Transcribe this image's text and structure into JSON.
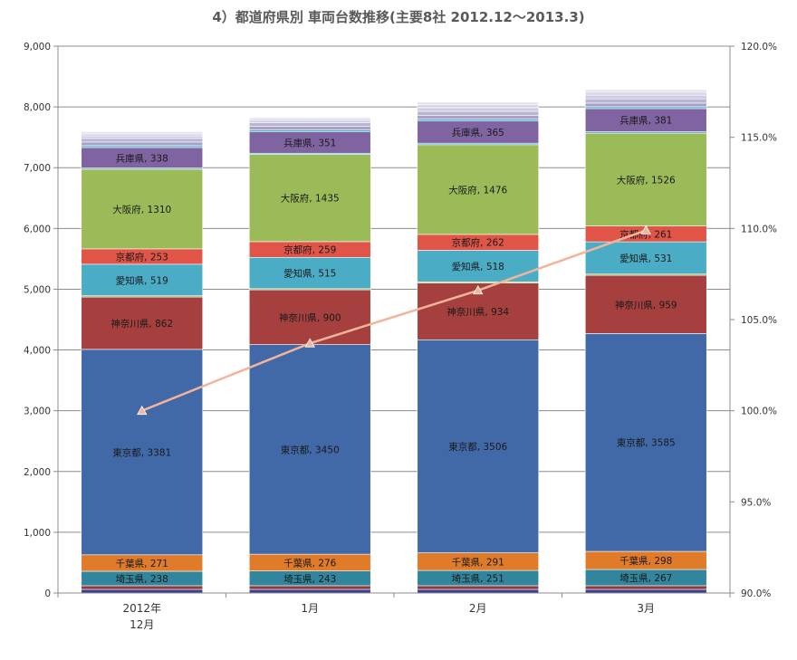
{
  "chart_data": {
    "type": "bar",
    "stacked": true,
    "title": "4）都道府県別 車両台数推移(主要8社 2012.12～2013.3)",
    "categories": [
      "2012年\n12月",
      "1月",
      "2月",
      "3月"
    ],
    "ylim": [
      0,
      9000
    ],
    "yticks": [
      0,
      1000,
      2000,
      3000,
      4000,
      5000,
      6000,
      7000,
      8000,
      9000
    ],
    "ytick_labels": [
      "0",
      "1,000",
      "2,000",
      "3,000",
      "4,000",
      "5,000",
      "6,000",
      "7,000",
      "8,000",
      "9,000"
    ],
    "y2lim": [
      90.0,
      120.0
    ],
    "y2ticks": [
      90,
      95,
      100,
      105,
      110,
      115,
      120
    ],
    "y2tick_labels": [
      "90.0%",
      "95.0%",
      "100.0%",
      "105.0%",
      "110.0%",
      "115.0%",
      "120.0%"
    ],
    "grid": "horizontal",
    "series": [
      {
        "name": "",
        "color": "#3A3F8F",
        "values": [
          60,
          60,
          60,
          60
        ],
        "labeled": false
      },
      {
        "name": "",
        "color": "#923A3A",
        "values": [
          60,
          60,
          60,
          60
        ],
        "labeled": false
      },
      {
        "name": "埼玉県",
        "color": "#31859C",
        "values": [
          238,
          243,
          251,
          267
        ],
        "labeled": true
      },
      {
        "name": "千葉県",
        "color": "#E07B2A",
        "values": [
          271,
          276,
          291,
          298
        ],
        "labeled": true
      },
      {
        "name": "東京都",
        "color": "#4169A8",
        "values": [
          3381,
          3450,
          3506,
          3585
        ],
        "labeled": true
      },
      {
        "name": "神奈川県",
        "color": "#A5403E",
        "values": [
          862,
          900,
          934,
          959
        ],
        "labeled": true
      },
      {
        "name": "",
        "color": "#9BBB59",
        "values": [
          20,
          20,
          20,
          20
        ],
        "labeled": false
      },
      {
        "name": "愛知県",
        "color": "#4BACC6",
        "values": [
          519,
          515,
          518,
          531
        ],
        "labeled": true
      },
      {
        "name": "京都府",
        "color": "#E05548",
        "values": [
          253,
          259,
          262,
          261
        ],
        "labeled": true
      },
      {
        "name": "大阪府",
        "color": "#9BBB59",
        "values": [
          1310,
          1435,
          1476,
          1526
        ],
        "labeled": true
      },
      {
        "name": "",
        "color": "#4BACC6",
        "values": [
          20,
          20,
          25,
          25
        ],
        "labeled": false
      },
      {
        "name": "兵庫県",
        "color": "#8064A2",
        "values": [
          338,
          351,
          365,
          381
        ],
        "labeled": true
      },
      {
        "name": "",
        "color": "#4BACC6",
        "values": [
          30,
          30,
          30,
          30
        ],
        "labeled": false
      },
      {
        "name": "",
        "color": "#A9A2C6",
        "values": [
          60,
          60,
          60,
          60
        ],
        "labeled": false
      },
      {
        "name": "",
        "color": "#B8B4D2",
        "values": [
          60,
          60,
          70,
          70
        ],
        "labeled": false
      },
      {
        "name": "",
        "color": "#CFCBE0",
        "values": [
          40,
          40,
          60,
          60
        ],
        "labeled": false
      },
      {
        "name": "",
        "color": "#DAD6E8",
        "values": [
          35,
          30,
          50,
          50
        ],
        "labeled": false
      },
      {
        "name": "",
        "color": "#E4E1EE",
        "values": [
          35,
          20,
          40,
          40
        ],
        "labeled": false
      }
    ],
    "line_series": {
      "name": "",
      "color": "#F2B49A",
      "values": [
        100.0,
        103.7,
        106.6,
        109.9
      ],
      "axis": "secondary"
    }
  }
}
